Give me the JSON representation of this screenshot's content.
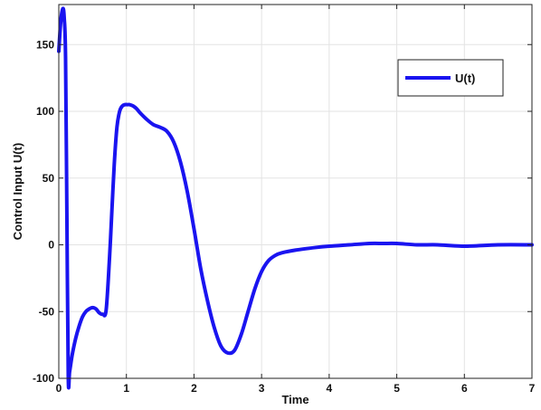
{
  "chart_data": {
    "type": "line",
    "xlabel": "Time",
    "ylabel": "Control Input U(t)",
    "xlim": [
      0,
      7
    ],
    "ylim": [
      -100,
      180
    ],
    "xticks": [
      0,
      1,
      2,
      3,
      4,
      5,
      6,
      7
    ],
    "yticks": [
      -100,
      -50,
      0,
      50,
      100,
      150
    ],
    "grid": true,
    "legend_position": "top-right",
    "series": [
      {
        "name": "U(t)",
        "color": "#1a14f0",
        "x": [
          0.0,
          0.03,
          0.06,
          0.08,
          0.1,
          0.12,
          0.14,
          0.16,
          0.2,
          0.25,
          0.3,
          0.35,
          0.4,
          0.45,
          0.5,
          0.55,
          0.6,
          0.65,
          0.7,
          0.75,
          0.78,
          0.82,
          0.86,
          0.9,
          0.94,
          0.98,
          1.02,
          1.05,
          1.1,
          1.15,
          1.2,
          1.3,
          1.4,
          1.5,
          1.6,
          1.7,
          1.8,
          1.9,
          2.0,
          2.1,
          2.2,
          2.3,
          2.4,
          2.5,
          2.6,
          2.7,
          2.8,
          2.9,
          3.0,
          3.1,
          3.2,
          3.3,
          3.5,
          3.8,
          4.0,
          4.3,
          4.6,
          4.8,
          5.0,
          5.3,
          5.6,
          6.0,
          6.5,
          7.0
        ],
        "values": [
          145,
          168,
          177,
          170,
          140,
          20,
          -99,
          -95,
          -82,
          -70,
          -61,
          -54,
          -50,
          -48,
          -47,
          -48,
          -51,
          -52,
          -49,
          -10,
          20,
          60,
          88,
          100,
          104,
          105,
          105,
          105,
          104,
          102,
          99,
          94,
          90,
          88,
          85,
          77,
          62,
          40,
          12,
          -18,
          -42,
          -62,
          -76,
          -81,
          -79,
          -67,
          -50,
          -33,
          -20,
          -12,
          -8,
          -6,
          -4,
          -2,
          -1,
          0,
          1,
          1,
          1,
          0,
          0,
          -1,
          0,
          0
        ]
      }
    ]
  }
}
